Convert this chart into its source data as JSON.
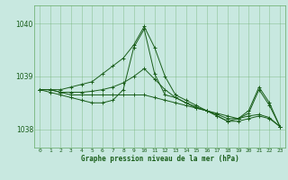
{
  "xlabel": "Graphe pression niveau de la mer (hPa)",
  "bg_color": "#c8e8e0",
  "grid_color": "#66aa66",
  "line_color": "#1a5e1a",
  "ylim": [
    1037.65,
    1040.35
  ],
  "yticks": [
    1038,
    1039,
    1040
  ],
  "xlim": [
    -0.5,
    23.5
  ],
  "xticks": [
    0,
    1,
    2,
    3,
    4,
    5,
    6,
    7,
    8,
    9,
    10,
    11,
    12,
    13,
    14,
    15,
    16,
    17,
    18,
    19,
    20,
    21,
    22,
    23
  ],
  "series": [
    [
      1038.75,
      1038.75,
      1038.7,
      1038.65,
      1038.65,
      1038.65,
      1038.65,
      1038.65,
      1038.65,
      1038.65,
      1038.65,
      1038.6,
      1038.55,
      1038.5,
      1038.45,
      1038.4,
      1038.35,
      1038.3,
      1038.25,
      1038.2,
      1038.3,
      1038.75,
      1038.45,
      1038.05
    ],
    [
      1038.75,
      1038.7,
      1038.65,
      1038.6,
      1038.55,
      1038.5,
      1038.5,
      1038.55,
      1038.75,
      1039.55,
      1039.9,
      1039.05,
      1038.65,
      1038.6,
      1038.5,
      1038.4,
      1038.35,
      1038.25,
      1038.15,
      1038.15,
      1038.2,
      1038.25,
      1038.2,
      1038.05
    ],
    [
      1038.75,
      1038.75,
      1038.75,
      1038.8,
      1038.85,
      1038.9,
      1039.05,
      1039.2,
      1039.35,
      1039.6,
      1039.95,
      1039.55,
      1039.0,
      1038.65,
      1038.55,
      1038.45,
      1038.35,
      1038.25,
      1038.15,
      1038.2,
      1038.35,
      1038.8,
      1038.5,
      1038.05
    ],
    [
      1038.75,
      1038.75,
      1038.7,
      1038.7,
      1038.7,
      1038.72,
      1038.75,
      1038.8,
      1038.88,
      1039.0,
      1039.15,
      1038.95,
      1038.75,
      1038.6,
      1038.5,
      1038.42,
      1038.35,
      1038.28,
      1038.2,
      1038.2,
      1038.25,
      1038.28,
      1038.22,
      1038.05
    ]
  ]
}
